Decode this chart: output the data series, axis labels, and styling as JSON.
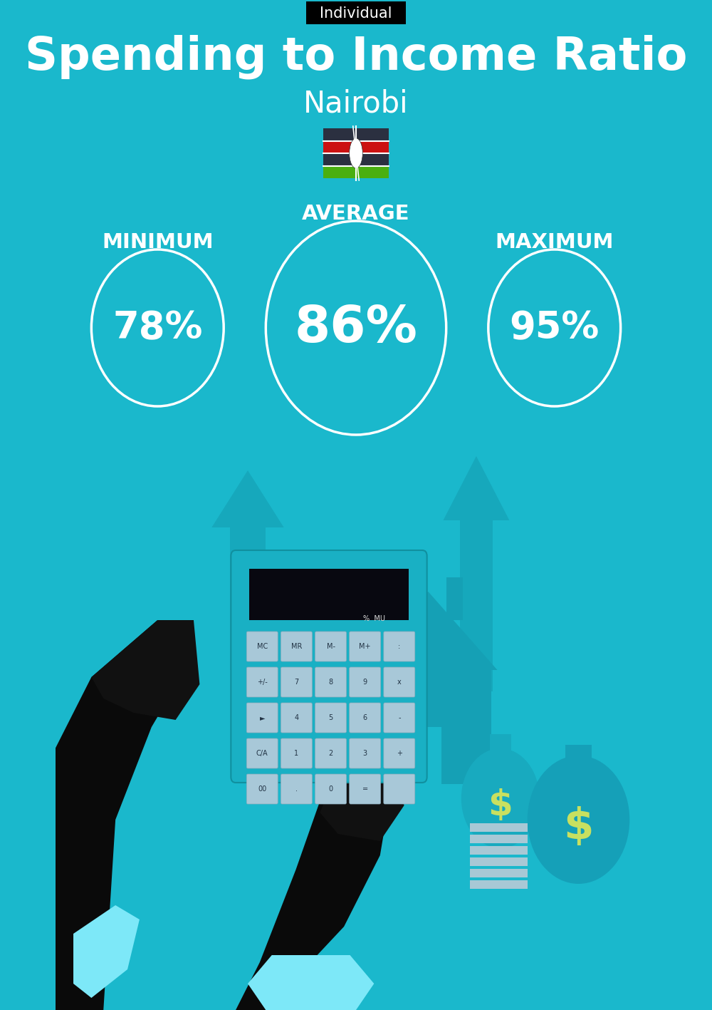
{
  "bg_color": "#1ab8cc",
  "title": "Spending to Income Ratio",
  "subtitle": "Nairobi",
  "tag_text": "Individual",
  "tag_bg": "#000000",
  "tag_text_color": "#ffffff",
  "title_color": "#ffffff",
  "subtitle_color": "#ffffff",
  "label_color": "#ffffff",
  "min_label": "MINIMUM",
  "avg_label": "AVERAGE",
  "max_label": "MAXIMUM",
  "min_value": "78%",
  "avg_value": "86%",
  "max_value": "95%",
  "circle_stroke": "#ffffff",
  "circle_lw": 2.5,
  "flag_stripe_colors": [
    "#2b3040",
    "#cc1111",
    "#2b3040",
    "#4aaf10"
  ],
  "arrow_color": "#16a8bc",
  "house_color": "#15a0b5",
  "hand_color": "#0a0a0a",
  "cuff_color": "#7de8f8",
  "calc_body_color": "#19b0c4",
  "calc_display_color": "#080810",
  "calc_btn_color": "#a8c8d8",
  "money_bag_color": "#15a0b8",
  "dollar_color": "#c8e060",
  "bills_color": "#a8c8d5"
}
